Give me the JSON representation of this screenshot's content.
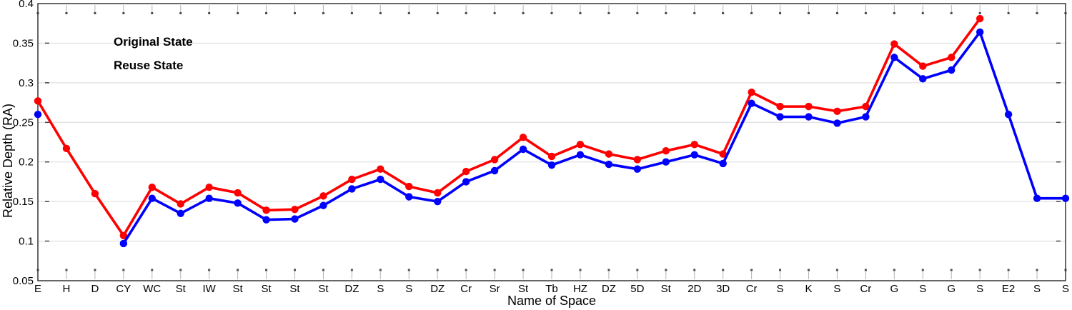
{
  "chart_data": {
    "type": "line",
    "title": "",
    "xlabel": "Name of Space",
    "ylabel": "Relative Depth (RA)",
    "ylim": [
      0.05,
      0.4
    ],
    "yticks": [
      0.05,
      0.1,
      0.15,
      0.2,
      0.25,
      0.3,
      0.35,
      0.4
    ],
    "grid": "horizontal-light-gray",
    "legend_position": "top-left-inside",
    "gridline_color": "#d9d9d9",
    "border_color": "#333333",
    "categories": [
      "E",
      "H",
      "D",
      "CY",
      "WC",
      "St",
      "IW",
      "St",
      "St",
      "St",
      "St",
      "DZ",
      "S",
      "S",
      "DZ",
      "Cr",
      "Sr",
      "St",
      "Tb",
      "HZ",
      "DZ",
      "5D",
      "St",
      "2D",
      "3D",
      "Cr",
      "S",
      "K",
      "S",
      "Cr",
      "G",
      "S",
      "G",
      "S",
      "E2",
      "S",
      "S"
    ],
    "series": [
      {
        "name": "Original State",
        "color": "#ff0000",
        "values": [
          0.277,
          0.217,
          0.16,
          0.107,
          0.168,
          0.147,
          0.168,
          0.161,
          0.139,
          0.14,
          0.157,
          0.178,
          0.191,
          0.169,
          0.161,
          0.188,
          0.203,
          0.231,
          0.207,
          0.222,
          0.21,
          0.203,
          0.214,
          0.222,
          0.21,
          0.288,
          0.27,
          0.27,
          0.264,
          0.27,
          0.349,
          0.321,
          0.332,
          0.381,
          null,
          null,
          null
        ]
      },
      {
        "name": "Reuse State",
        "color": "#0000ff",
        "values": [
          0.26,
          null,
          null,
          0.097,
          0.154,
          0.135,
          0.154,
          0.148,
          0.127,
          0.128,
          0.145,
          0.166,
          0.178,
          0.156,
          0.15,
          0.175,
          0.189,
          0.216,
          0.196,
          0.209,
          0.197,
          0.191,
          0.2,
          0.209,
          0.198,
          0.274,
          0.257,
          0.257,
          0.249,
          0.257,
          0.332,
          0.305,
          0.316,
          0.364,
          0.26,
          0.154,
          0.154
        ]
      }
    ]
  }
}
